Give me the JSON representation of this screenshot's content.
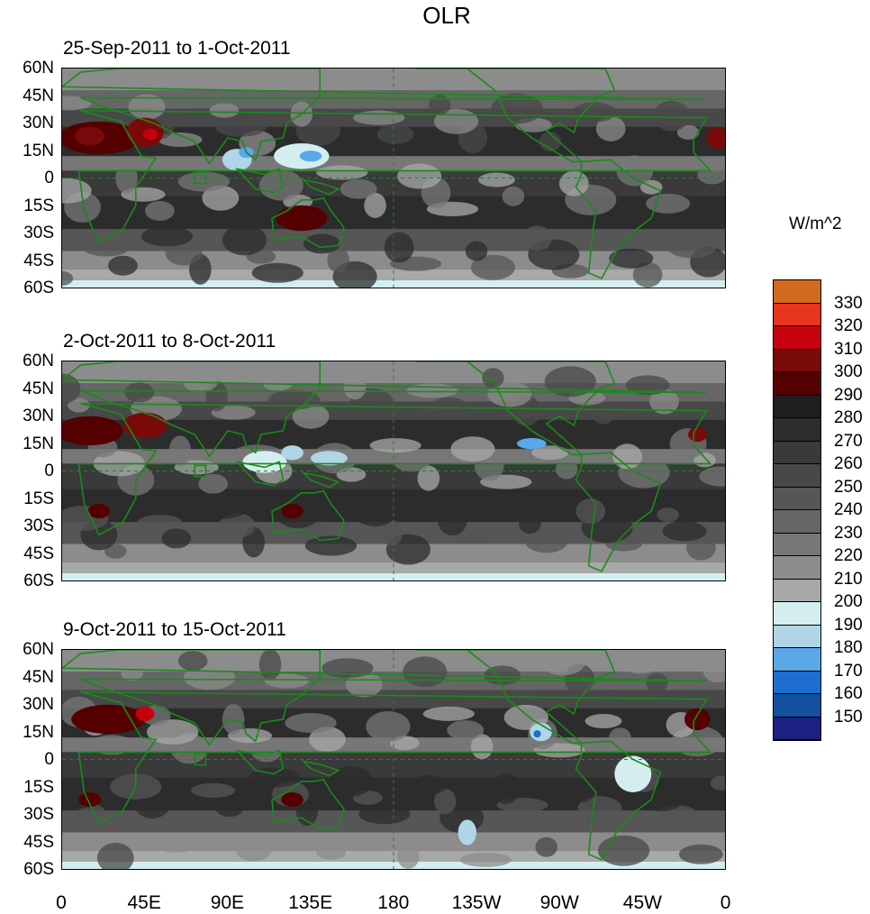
{
  "title": "OLR",
  "units_label": "W/m^2",
  "panels": [
    {
      "label": "25-Sep-2011 to 1-Oct-2011"
    },
    {
      "label": "2-Oct-2011 to 8-Oct-2011"
    },
    {
      "label": "9-Oct-2011 to 15-Oct-2011"
    }
  ],
  "lat_labels": [
    "60N",
    "45N",
    "30N",
    "15N",
    "0",
    "15S",
    "30S",
    "45S",
    "60S"
  ],
  "lon_labels": [
    "0",
    "45E",
    "90E",
    "135E",
    "180",
    "135W",
    "90W",
    "45W",
    "0"
  ],
  "colorbar": {
    "labels": [
      "330",
      "320",
      "310",
      "300",
      "290",
      "280",
      "270",
      "260",
      "250",
      "240",
      "230",
      "220",
      "210",
      "200",
      "190",
      "180",
      "170",
      "160",
      "150"
    ],
    "colors": [
      "#d26a1e",
      "#e8351f",
      "#c8000e",
      "#7a0a0a",
      "#550000",
      "#1e1e1e",
      "#2c2c2c",
      "#3a3a3a",
      "#484848",
      "#565656",
      "#666666",
      "#777777",
      "#8c8c8c",
      "#a8a8a8",
      "#d4eef0",
      "#afd5e6",
      "#5aa8e8",
      "#1e6ed0",
      "#1450a0",
      "#1c2080"
    ]
  },
  "colors": {
    "coastline": "#1a8a1a",
    "ocean_base": "#3c3c3c"
  }
}
